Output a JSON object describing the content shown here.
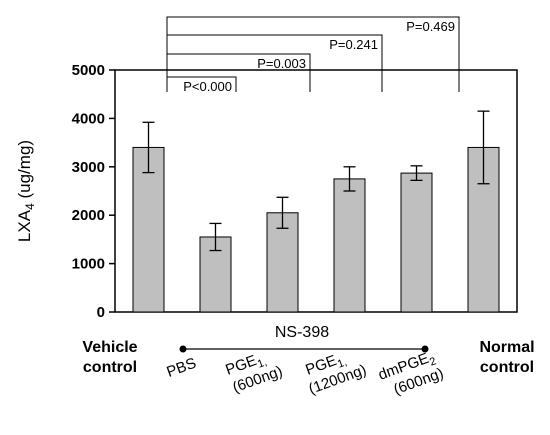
{
  "chart_data": {
    "type": "bar",
    "ylabel_main": "LXA",
    "ylabel_sub": "4",
    "ylabel_unit": " (ug/mg)",
    "ylim": [
      0,
      5000
    ],
    "yticks": [
      "0",
      "1000",
      "2000",
      "3000",
      "4000",
      "5000"
    ],
    "bar_color": "#bfbfbf",
    "categories": [
      {
        "line1": "Vehicle",
        "line2": "control"
      },
      {
        "line1": "PBS",
        "line2": ""
      },
      {
        "line1": "PGE",
        "sub1": "1,",
        "line2": "(600ng)"
      },
      {
        "line1": "PGE",
        "sub1": "1,",
        "line2": "(1200ng)"
      },
      {
        "line1": "dmPGE",
        "sub1": "2",
        "line2": "(600ng)"
      },
      {
        "line1": "Normal",
        "line2": "control"
      }
    ],
    "values": [
      3400,
      1550,
      2050,
      2750,
      2870,
      3400
    ],
    "errors": [
      520,
      280,
      320,
      250,
      150,
      750
    ],
    "group_label": "NS-398",
    "comparisons": [
      {
        "label": "P<0.000",
        "from": 0,
        "to": 1
      },
      {
        "label": "P=0.003",
        "from": 0,
        "to": 2
      },
      {
        "label": "P=0.241",
        "from": 0,
        "to": 3
      },
      {
        "label": "P=0.469",
        "from": 0,
        "to": 4
      }
    ]
  }
}
